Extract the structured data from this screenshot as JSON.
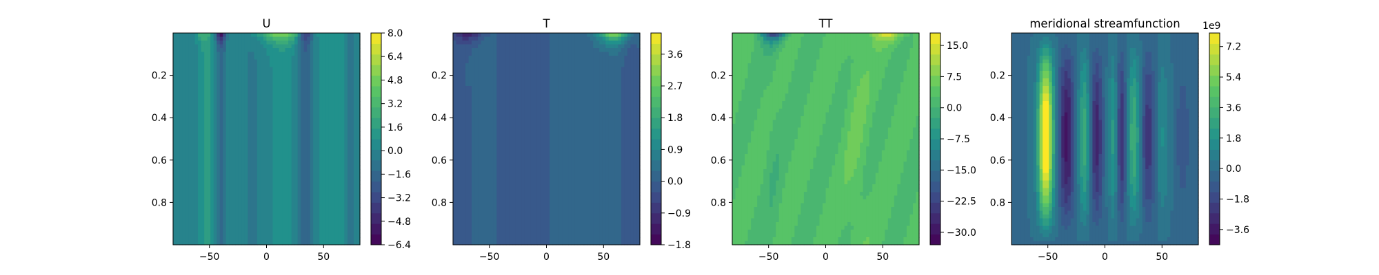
{
  "chart_data": [
    {
      "type": "heatmap",
      "title": "U",
      "xlim": [
        -90,
        90
      ],
      "ylim": [
        1.0,
        0.0
      ],
      "x_ticks": [
        "−50",
        "0",
        "50"
      ],
      "y_ticks": [
        "0.2",
        "0.4",
        "0.6",
        "0.8"
      ],
      "colorbar_ticks": [
        "8.0",
        "6.4",
        "4.8",
        "3.2",
        "1.6",
        "0.0",
        "−1.6",
        "−3.2",
        "−4.8",
        "−6.4"
      ],
      "colorbar_range": [
        -6.4,
        8.0
      ],
      "colorbar_offset": "",
      "field": "zonal_wind",
      "colormap": [
        "#440154",
        "#3b528b",
        "#21918c",
        "#5ec962",
        "#fde725"
      ]
    },
    {
      "type": "heatmap",
      "title": "T",
      "xlim": [
        -90,
        90
      ],
      "ylim": [
        1.0,
        0.0
      ],
      "x_ticks": [
        "−50",
        "0",
        "50"
      ],
      "y_ticks": [
        "0.2",
        "0.4",
        "0.6",
        "0.8"
      ],
      "colorbar_ticks": [
        "3.6",
        "2.7",
        "1.8",
        "0.9",
        "0.0",
        "−0.9",
        "−1.8"
      ],
      "colorbar_range": [
        -1.8,
        4.2
      ],
      "colorbar_offset": "",
      "field": "temperature",
      "colormap": [
        "#440154",
        "#3b528b",
        "#21918c",
        "#5ec962",
        "#fde725"
      ]
    },
    {
      "type": "heatmap",
      "title": "TT",
      "xlim": [
        -90,
        90
      ],
      "ylim": [
        1.0,
        0.0
      ],
      "x_ticks": [
        "−50",
        "0",
        "50"
      ],
      "y_ticks": [
        "0.2",
        "0.4",
        "0.6",
        "0.8"
      ],
      "colorbar_ticks": [
        "15.0",
        "7.5",
        "0.0",
        "−7.5",
        "−15.0",
        "−22.5",
        "−30.0"
      ],
      "colorbar_range": [
        -33,
        18
      ],
      "colorbar_offset": "",
      "field": "temperature_tendency",
      "colormap": [
        "#440154",
        "#3b528b",
        "#21918c",
        "#5ec962",
        "#fde725"
      ]
    },
    {
      "type": "heatmap",
      "title": "meridional streamfunction",
      "xlim": [
        -90,
        90
      ],
      "ylim": [
        1.0,
        0.0
      ],
      "x_ticks": [
        "−50",
        "0",
        "50"
      ],
      "y_ticks": [
        "0.2",
        "0.4",
        "0.6",
        "0.8"
      ],
      "colorbar_ticks": [
        "7.2",
        "5.4",
        "3.6",
        "1.8",
        "0.0",
        "−1.8",
        "−3.6"
      ],
      "colorbar_range": [
        -4.5,
        8.0
      ],
      "colorbar_offset": "1e9",
      "field": "streamfunction",
      "colormap": [
        "#440154",
        "#3b528b",
        "#21918c",
        "#5ec962",
        "#fde725"
      ]
    }
  ]
}
